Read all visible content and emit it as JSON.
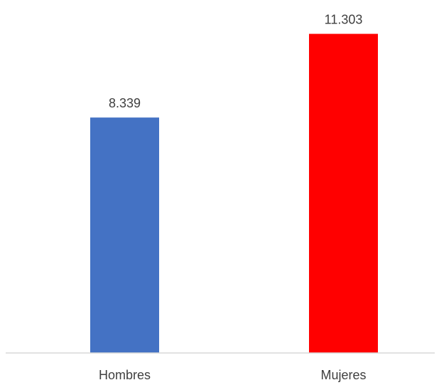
{
  "chart_data": {
    "type": "bar",
    "categories": [
      "Hombres",
      "Mujeres"
    ],
    "values": [
      8.339,
      11.303
    ],
    "value_labels": [
      "8.339",
      "11.303"
    ],
    "bar_colors": [
      "#4472c4",
      "#ff0000"
    ],
    "title": "",
    "xlabel": "",
    "ylabel": "",
    "ylim": [
      0,
      12.3
    ],
    "grid": false,
    "legend": "none"
  }
}
